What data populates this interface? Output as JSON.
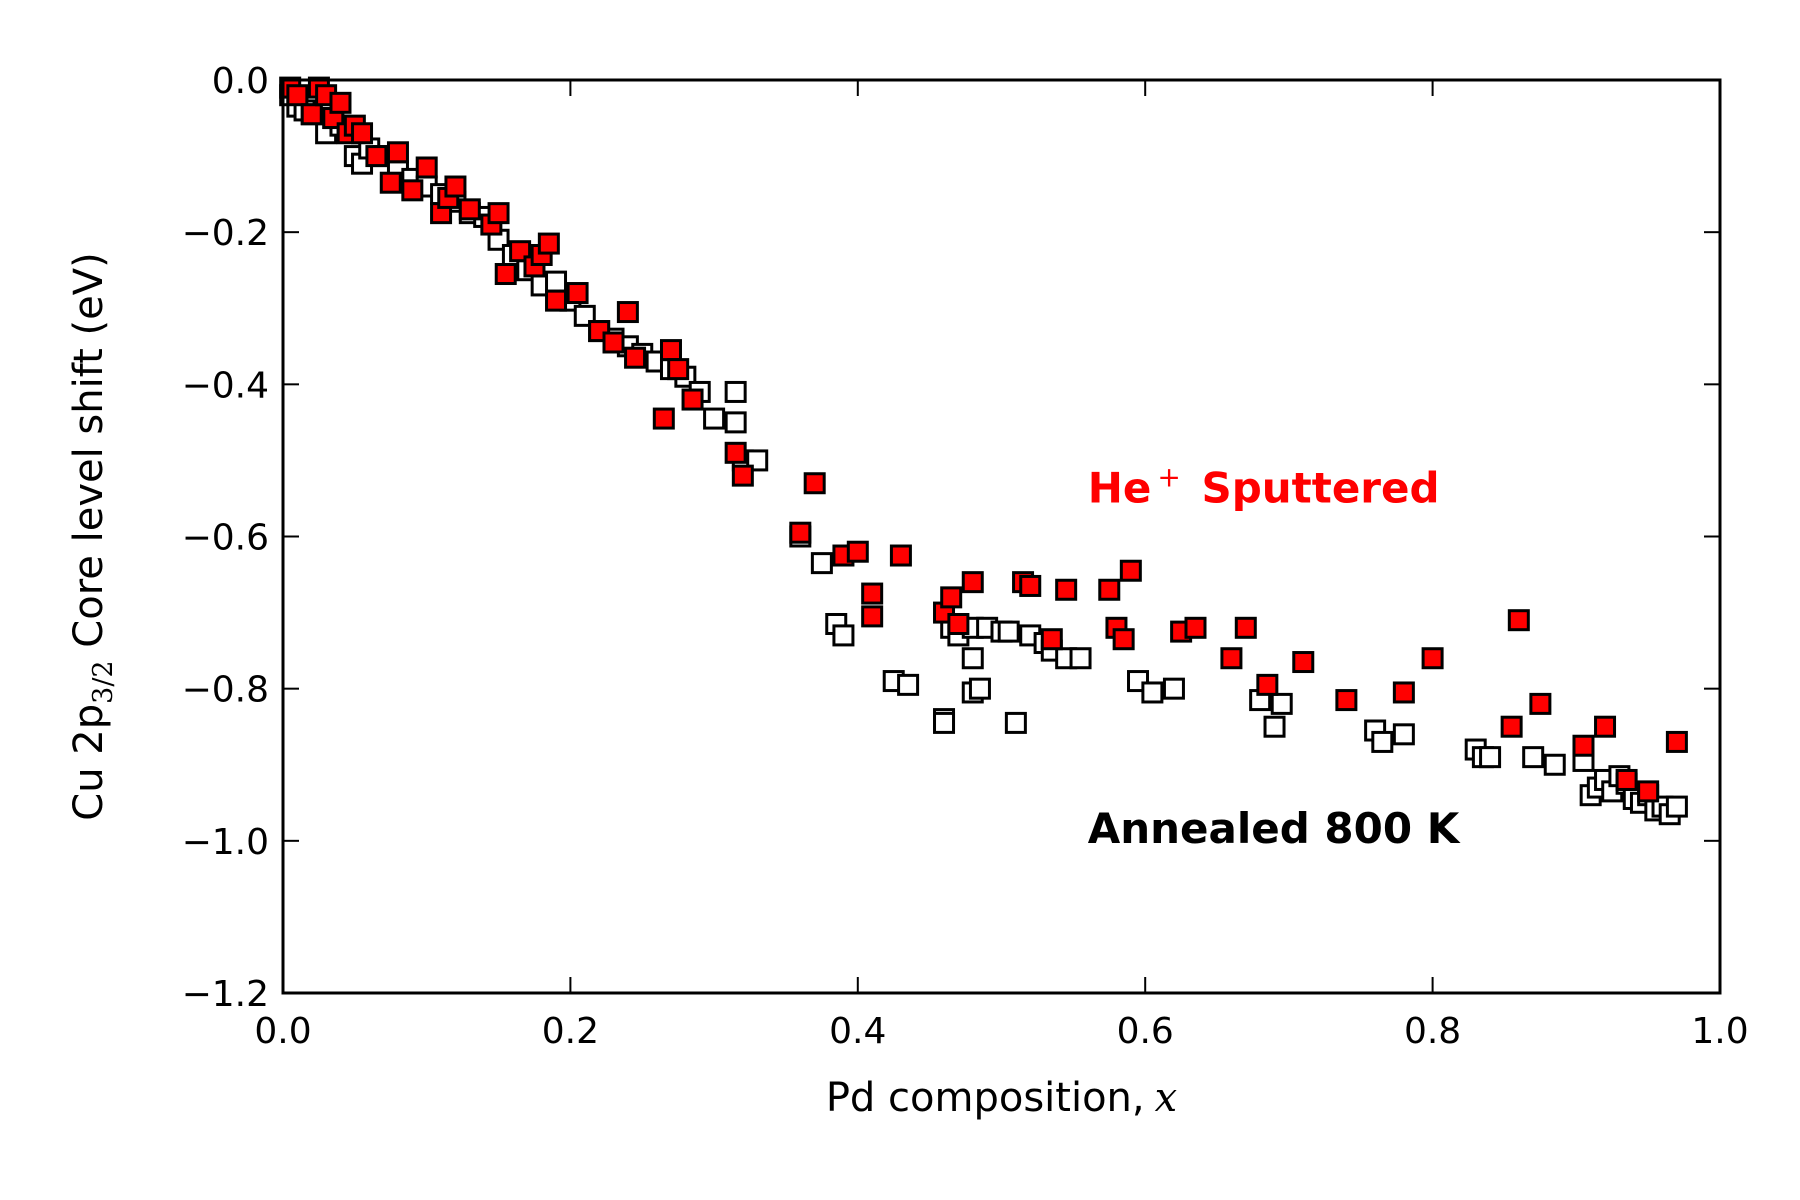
{
  "chart_data": {
    "type": "scatter",
    "title": "",
    "xlabel": "Pd composition,",
    "xlabel_var": "x",
    "ylabel_parts": {
      "prefix": "Cu 2p",
      "subscript": "3/2",
      "suffix": " Core level shift (eV)"
    },
    "xlim": [
      0.0,
      1.0
    ],
    "ylim": [
      -1.2,
      0.0
    ],
    "x_ticks": [
      0.0,
      0.2,
      0.4,
      0.6,
      0.8,
      1.0
    ],
    "x_tick_labels": [
      "0.0",
      "0.2",
      "0.4",
      "0.6",
      "0.8",
      "1.0"
    ],
    "y_ticks": [
      0.0,
      -0.2,
      -0.4,
      -0.6,
      -0.8,
      -1.0,
      -1.2
    ],
    "y_tick_labels": [
      "0.0",
      "−0.2",
      "−0.4",
      "−0.6",
      "−0.8",
      "−1.0",
      "−1.2"
    ],
    "grid": false,
    "annotations": [
      {
        "id": "he-sputtered",
        "prefix": "He",
        "sup": "+",
        "suffix": " Sputtered",
        "x": 0.56,
        "y": -0.555,
        "color": "#ff0000"
      },
      {
        "id": "annealed",
        "text": "Annealed 800 K",
        "x": 0.56,
        "y": -1.003,
        "color": "#000000"
      }
    ],
    "series": [
      {
        "id": "annealed",
        "marker": "square-open",
        "face": "#ffffff",
        "edge": "#000000",
        "x": [
          0.005,
          0.01,
          0.015,
          0.02,
          0.03,
          0.035,
          0.04,
          0.045,
          0.05,
          0.055,
          0.06,
          0.07,
          0.08,
          0.09,
          0.1,
          0.11,
          0.12,
          0.13,
          0.14,
          0.15,
          0.16,
          0.17,
          0.18,
          0.19,
          0.2,
          0.21,
          0.22,
          0.23,
          0.24,
          0.25,
          0.26,
          0.27,
          0.28,
          0.29,
          0.3,
          0.315,
          0.315,
          0.32,
          0.33,
          0.36,
          0.375,
          0.385,
          0.39,
          0.425,
          0.435,
          0.46,
          0.46,
          0.465,
          0.47,
          0.48,
          0.48,
          0.48,
          0.485,
          0.49,
          0.5,
          0.505,
          0.51,
          0.52,
          0.53,
          0.535,
          0.545,
          0.555,
          0.595,
          0.605,
          0.62,
          0.68,
          0.69,
          0.695,
          0.76,
          0.765,
          0.78,
          0.83,
          0.835,
          0.84,
          0.87,
          0.885,
          0.905,
          0.91,
          0.915,
          0.92,
          0.925,
          0.93,
          0.935,
          0.94,
          0.945,
          0.95,
          0.955,
          0.96,
          0.965,
          0.97
        ],
        "y": [
          -0.02,
          -0.035,
          -0.04,
          -0.045,
          -0.07,
          -0.05,
          -0.06,
          -0.065,
          -0.1,
          -0.11,
          -0.09,
          -0.1,
          -0.12,
          -0.13,
          -0.14,
          -0.15,
          -0.16,
          -0.175,
          -0.18,
          -0.21,
          -0.23,
          -0.25,
          -0.27,
          -0.265,
          -0.29,
          -0.31,
          -0.33,
          -0.34,
          -0.35,
          -0.36,
          -0.37,
          -0.38,
          -0.39,
          -0.41,
          -0.445,
          -0.41,
          -0.45,
          -0.5,
          -0.5,
          -0.6,
          -0.635,
          -0.715,
          -0.73,
          -0.79,
          -0.795,
          -0.84,
          -0.845,
          -0.72,
          -0.73,
          -0.72,
          -0.76,
          -0.805,
          -0.8,
          -0.72,
          -0.725,
          -0.725,
          -0.845,
          -0.73,
          -0.74,
          -0.75,
          -0.76,
          -0.76,
          -0.79,
          -0.805,
          -0.8,
          -0.815,
          -0.85,
          -0.82,
          -0.855,
          -0.87,
          -0.86,
          -0.88,
          -0.89,
          -0.89,
          -0.89,
          -0.9,
          -0.895,
          -0.94,
          -0.93,
          -0.92,
          -0.935,
          -0.915,
          -0.925,
          -0.945,
          -0.95,
          -0.94,
          -0.96,
          -0.955,
          -0.965,
          -0.955
        ]
      },
      {
        "id": "he-sputtered",
        "marker": "square-filled",
        "face": "#ff0000",
        "edge": "#000000",
        "x": [
          0.005,
          0.01,
          0.02,
          0.025,
          0.03,
          0.035,
          0.04,
          0.045,
          0.05,
          0.055,
          0.065,
          0.075,
          0.08,
          0.09,
          0.1,
          0.11,
          0.115,
          0.12,
          0.13,
          0.145,
          0.15,
          0.155,
          0.165,
          0.175,
          0.18,
          0.185,
          0.19,
          0.205,
          0.22,
          0.23,
          0.24,
          0.245,
          0.265,
          0.27,
          0.275,
          0.285,
          0.315,
          0.32,
          0.36,
          0.37,
          0.39,
          0.4,
          0.41,
          0.41,
          0.43,
          0.46,
          0.465,
          0.47,
          0.48,
          0.515,
          0.52,
          0.535,
          0.545,
          0.575,
          0.58,
          0.585,
          0.59,
          0.625,
          0.635,
          0.66,
          0.67,
          0.685,
          0.71,
          0.74,
          0.78,
          0.8,
          0.855,
          0.86,
          0.875,
          0.905,
          0.92,
          0.935,
          0.95,
          0.97
        ],
        "y": [
          -0.01,
          -0.02,
          -0.045,
          -0.01,
          -0.02,
          -0.05,
          -0.03,
          -0.07,
          -0.06,
          -0.07,
          -0.1,
          -0.135,
          -0.095,
          -0.145,
          -0.115,
          -0.175,
          -0.155,
          -0.14,
          -0.17,
          -0.19,
          -0.175,
          -0.255,
          -0.225,
          -0.245,
          -0.23,
          -0.215,
          -0.29,
          -0.28,
          -0.33,
          -0.345,
          -0.305,
          -0.365,
          -0.445,
          -0.355,
          -0.38,
          -0.42,
          -0.49,
          -0.52,
          -0.595,
          -0.53,
          -0.625,
          -0.62,
          -0.675,
          -0.705,
          -0.625,
          -0.7,
          -0.68,
          -0.715,
          -0.66,
          -0.66,
          -0.665,
          -0.735,
          -0.67,
          -0.67,
          -0.72,
          -0.735,
          -0.645,
          -0.725,
          -0.72,
          -0.76,
          -0.72,
          -0.795,
          -0.765,
          -0.815,
          -0.805,
          -0.76,
          -0.85,
          -0.71,
          -0.82,
          -0.875,
          -0.85,
          -0.92,
          -0.935,
          -0.87
        ]
      }
    ]
  }
}
